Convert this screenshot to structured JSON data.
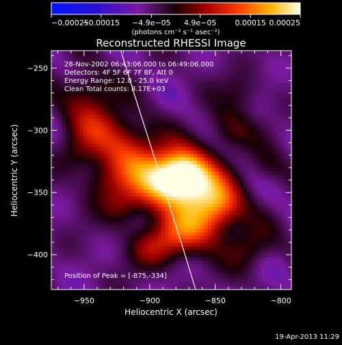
{
  "chart_data": {
    "type": "heatmap",
    "title": "Reconstructed RHESSI Image",
    "xlabel": "Heliocentric X (arcsec)",
    "ylabel": "Heliocentric Y (arcsec)",
    "xlim": [
      -975,
      -792
    ],
    "ylim": [
      -428,
      -236
    ],
    "x_ticks": [
      -950,
      -900,
      -850,
      -800
    ],
    "x_tick_labels": [
      "−950",
      "−900",
      "−850",
      "−800"
    ],
    "y_ticks": [
      -250,
      -300,
      -350,
      -400
    ],
    "y_tick_labels": [
      "−250",
      "−300",
      "−350",
      "−400"
    ],
    "colorbar": {
      "range": [
        -0.00025,
        0.00025
      ],
      "ticks": [
        -0.00025,
        -0.00015,
        -4.9e-05,
        4.9e-05,
        0.00015,
        0.00025
      ],
      "tick_labels": [
        "−0.00025",
        "−0.00015",
        "−4.9e−05",
        "4.9e−05",
        "0.00015",
        "0.00025"
      ],
      "unit_label": "(photons cm⁻² s⁻¹ asec⁻²)"
    },
    "annotations": {
      "time_range": "28-Nov-2002 06:43:06.000 to 06:49:06.000",
      "detectors": "Detectors: 4F 5F 6F 7F 8F, Att 0",
      "energy": "Energy Range: 12.0 - 25.0 keV",
      "method": "Clean     Total counts: 8.17E+03",
      "peak": "Position of Peak = [-875,-334]"
    },
    "peak": [
      -875,
      -334
    ],
    "limb_curve": [
      [
        -922,
        -236
      ],
      [
        -912,
        -270
      ],
      [
        -900,
        -310
      ],
      [
        -888,
        -350
      ],
      [
        -876,
        -390
      ],
      [
        -865,
        -428
      ]
    ],
    "timestamp": "19-Apr-2013 11:29"
  }
}
